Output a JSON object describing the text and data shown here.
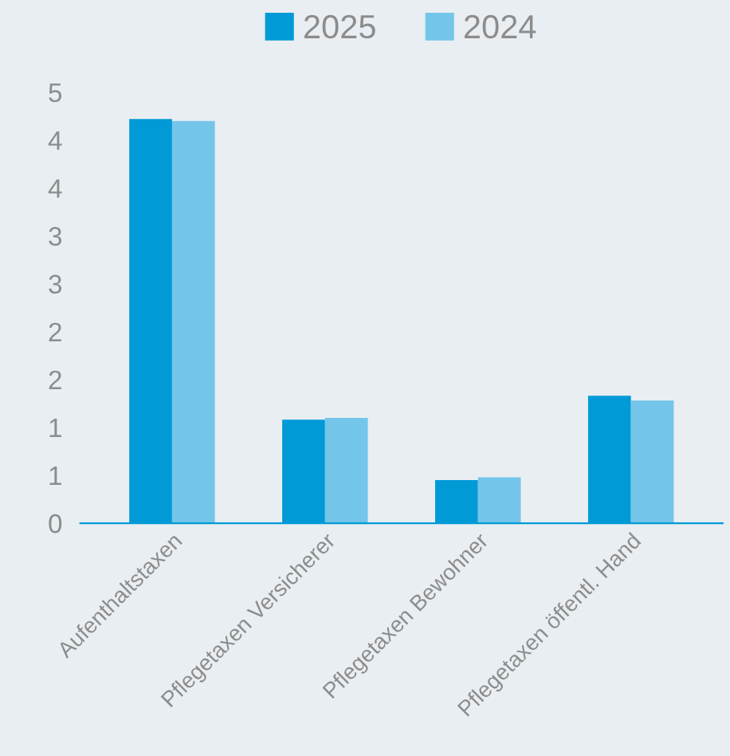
{
  "chart_data": {
    "type": "bar",
    "categories": [
      "Aufenthaltstaxen",
      "Pflegetaxen Versicherer",
      "Pflegetaxen Bewohner",
      "Pflegetaxen öffentl. Hand"
    ],
    "series": [
      {
        "name": "2025",
        "color": "#009ad6",
        "values": [
          4.22,
          1.08,
          0.45,
          1.33
        ]
      },
      {
        "name": "2024",
        "color": "#74c5ea",
        "values": [
          4.2,
          1.1,
          0.48,
          1.28
        ]
      }
    ],
    "ylim": [
      0,
      4.5
    ],
    "yticks": [
      0,
      {
        "value": 0.5,
        "label": "1"
      },
      1,
      {
        "value": 1.5,
        "label": "2"
      },
      2,
      {
        "value": 2.5,
        "label": "3"
      },
      3,
      {
        "value": 3.5,
        "label": "4"
      },
      4,
      {
        "value": 4.5,
        "label": "5"
      }
    ],
    "grid": false,
    "legend": "top"
  }
}
